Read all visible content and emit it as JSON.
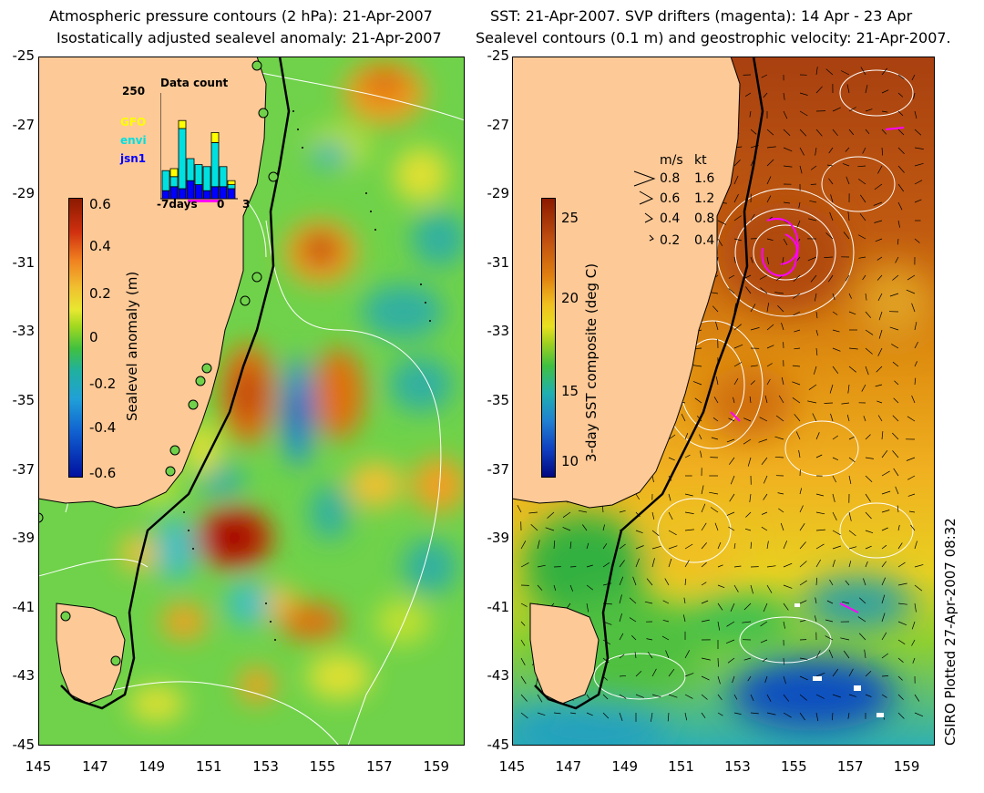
{
  "left_panel": {
    "title_line1": "Atmospheric pressure contours (2 hPa): 21-Apr-2007",
    "title_line2": "Isostatically adjusted sealevel anomaly: 21-Apr-2007",
    "colorbar": {
      "title": "Sealevel anomaly (m)",
      "ticks": [
        "0.6",
        "0.4",
        "0.2",
        "0",
        "-0.2",
        "-0.4",
        "-0.6"
      ],
      "range": [
        -0.6,
        0.6
      ]
    },
    "inset": {
      "title": "Data count",
      "ymax_label": "250",
      "legend": [
        {
          "label": "GFO",
          "color": "#ffff00"
        },
        {
          "label": "envi",
          "color": "#00e0e0"
        },
        {
          "label": "jsn1",
          "color": "#0000ff"
        }
      ],
      "xlabels": [
        "-7days",
        "0",
        "3"
      ],
      "bars": {
        "jsn1": [
          20,
          30,
          25,
          45,
          35,
          20,
          30,
          30,
          25
        ],
        "envi": [
          50,
          25,
          150,
          55,
          50,
          60,
          110,
          50,
          10
        ],
        "GFO": [
          0,
          20,
          20,
          0,
          0,
          0,
          25,
          0,
          10
        ]
      }
    }
  },
  "right_panel": {
    "title_line1": "SST: 21-Apr-2007. SVP drifters (magenta): 14 Apr - 23 Apr",
    "title_line2": "Sealevel contours (0.1 m) and geostrophic velocity: 21-Apr-2007.",
    "colorbar": {
      "title": "3-day SST composite (deg C)",
      "ticks": [
        "25",
        "20",
        "15",
        "10"
      ],
      "range": [
        8,
        27
      ]
    },
    "velocity_legend": {
      "headers": [
        "m/s",
        "kt"
      ],
      "rows": [
        [
          "0.8",
          "1.6"
        ],
        [
          "0.6",
          "1.2"
        ],
        [
          "0.4",
          "0.8"
        ],
        [
          "0.2",
          "0.4"
        ]
      ]
    }
  },
  "axes": {
    "y_labels": [
      "-25",
      "-27",
      "-29",
      "-31",
      "-33",
      "-35",
      "-37",
      "-39",
      "-41",
      "-43",
      "-45"
    ],
    "x_labels": [
      "145",
      "147",
      "149",
      "151",
      "153",
      "155",
      "157",
      "159"
    ],
    "lon_range": [
      145,
      160
    ],
    "lat_range": [
      -45,
      -25
    ]
  },
  "footer_note": "CSIRO Plotted 27-Apr-2007 08:32",
  "colors": {
    "land": "#fdc997",
    "coast": "#000000",
    "contour": "#ffffff",
    "drifter": "#ff00ff"
  }
}
